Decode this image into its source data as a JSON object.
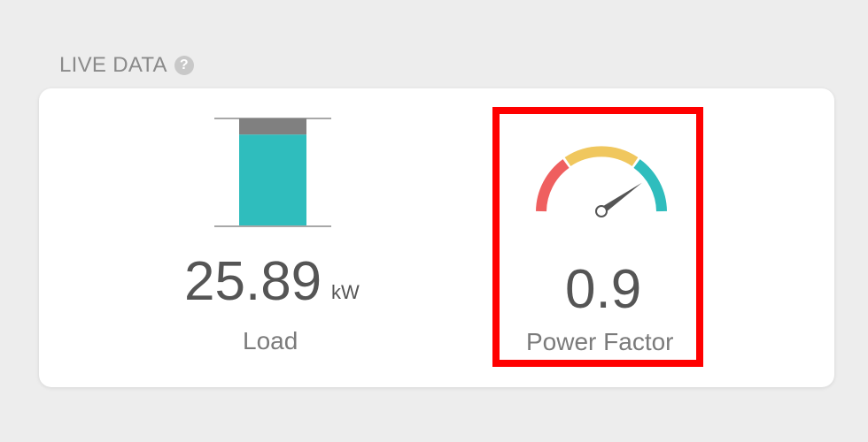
{
  "header": {
    "title": "LIVE DATA",
    "help_icon": "question-circle-icon"
  },
  "load": {
    "value": "25.89",
    "unit": "kW",
    "label": "Load",
    "fill_fraction": 0.85,
    "colors": {
      "fill": "#2fbdbd",
      "remainder": "#808080",
      "scale_lines": "#a8a8a8"
    }
  },
  "power_factor": {
    "value": "0.9",
    "label": "Power Factor",
    "gauge_level": 0.9,
    "colors": {
      "low": "#ef5f5f",
      "mid": "#f0c75e",
      "high": "#2fbdbd",
      "needle": "#555555",
      "highlight_border": "#ff0000"
    }
  }
}
